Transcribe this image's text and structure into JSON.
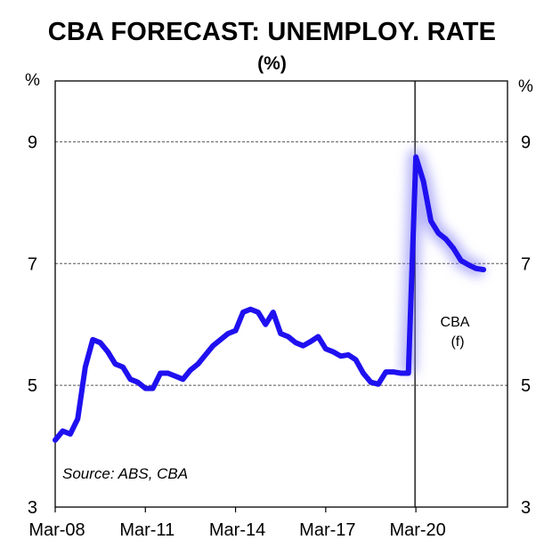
{
  "chart_data": {
    "type": "line",
    "title": "CBA FORECAST: UNEMPLOY. RATE",
    "subtitle": "(%)",
    "ylabel_left": "%",
    "ylabel_right": "%",
    "ylim": [
      3,
      10
    ],
    "yticks": [
      3,
      5,
      7,
      9
    ],
    "xticks": [
      "Mar-08",
      "Mar-11",
      "Mar-14",
      "Mar-17",
      "Mar-20"
    ],
    "grid": "dashed-horizontal",
    "line_color": "#1f10f0",
    "annotations": {
      "source": "Source: ABS, CBA",
      "forecast_line1": "CBA",
      "forecast_line2": "(f)"
    },
    "forecast_start": "Mar-20",
    "series": [
      {
        "x": [
          "Mar-08",
          "Jun-08",
          "Sep-08",
          "Dec-08",
          "Mar-09",
          "Jun-09",
          "Sep-09",
          "Dec-09",
          "Mar-10",
          "Jun-10",
          "Sep-10",
          "Dec-10",
          "Mar-11",
          "Jun-11",
          "Sep-11",
          "Dec-11",
          "Mar-12",
          "Jun-12",
          "Sep-12",
          "Dec-12",
          "Mar-13",
          "Jun-13",
          "Sep-13",
          "Dec-13",
          "Mar-14",
          "Jun-14",
          "Sep-14",
          "Dec-14",
          "Mar-15",
          "Jun-15",
          "Sep-15",
          "Dec-15",
          "Mar-16",
          "Jun-16",
          "Sep-16",
          "Dec-16",
          "Mar-17",
          "Jun-17",
          "Sep-17",
          "Dec-17",
          "Mar-18",
          "Jun-18",
          "Sep-18",
          "Dec-18",
          "Mar-19",
          "Jun-19",
          "Sep-19",
          "Dec-19",
          "Mar-20",
          "Jun-20",
          "Sep-20",
          "Dec-20",
          "Mar-21",
          "Jun-21",
          "Sep-21",
          "Dec-21",
          "Mar-22",
          "Jun-22"
        ],
        "values": [
          4.1,
          4.25,
          4.2,
          4.45,
          5.3,
          5.75,
          5.7,
          5.55,
          5.35,
          5.3,
          5.1,
          5.05,
          4.95,
          4.95,
          5.2,
          5.2,
          5.15,
          5.1,
          5.25,
          5.35,
          5.5,
          5.65,
          5.75,
          5.85,
          5.9,
          6.2,
          6.25,
          6.2,
          6.0,
          6.2,
          5.85,
          5.8,
          5.7,
          5.65,
          5.72,
          5.8,
          5.6,
          5.55,
          5.48,
          5.5,
          5.42,
          5.2,
          5.05,
          5.02,
          5.22,
          5.22,
          5.2,
          5.2,
          8.75,
          8.35,
          7.7,
          7.5,
          7.4,
          7.25,
          7.05,
          6.98,
          6.92,
          6.9
        ]
      }
    ]
  }
}
